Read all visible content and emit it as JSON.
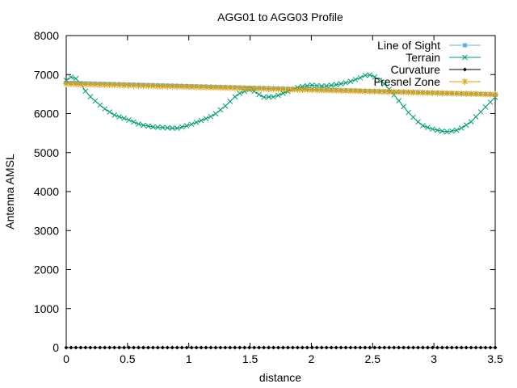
{
  "chart_data": {
    "type": "line",
    "title": "AGG01 to AGG03 Profile",
    "xlabel": "distance",
    "ylabel": "Antenna AMSL",
    "xlim": [
      0,
      3.5
    ],
    "ylim": [
      0,
      8000
    ],
    "xticks": [
      0,
      0.5,
      1,
      1.5,
      2,
      2.5,
      3,
      3.5
    ],
    "xtick_labels": [
      "0",
      "0.5",
      "1",
      "1.5",
      "2",
      "2.5",
      "3",
      "3.5"
    ],
    "yticks": [
      0,
      1000,
      2000,
      3000,
      4000,
      5000,
      6000,
      7000,
      8000
    ],
    "ytick_labels": [
      "0",
      "1000",
      "2000",
      "3000",
      "4000",
      "5000",
      "6000",
      "7000",
      "8000"
    ],
    "grid": false,
    "legend_position": "top-right",
    "series": [
      {
        "name": "Line of Sight",
        "color": "#56b4e9",
        "marker": "square",
        "x": [
          0,
          3.5
        ],
        "y": [
          6790,
          6490
        ],
        "samples": 90
      },
      {
        "name": "Terrain",
        "color": "#009e73",
        "marker": "x",
        "x": [
          0,
          0.05,
          0.1,
          0.15,
          0.2,
          0.3,
          0.4,
          0.5,
          0.6,
          0.7,
          0.8,
          0.9,
          1.0,
          1.1,
          1.2,
          1.3,
          1.4,
          1.5,
          1.55,
          1.6,
          1.7,
          1.8,
          1.9,
          2.0,
          2.1,
          2.2,
          2.3,
          2.4,
          2.45,
          2.5,
          2.6,
          2.7,
          2.8,
          2.9,
          3.0,
          3.1,
          3.2,
          3.3,
          3.4,
          3.5
        ],
        "y": [
          6850,
          6960,
          6850,
          6600,
          6420,
          6150,
          5950,
          5850,
          5720,
          5660,
          5640,
          5620,
          5700,
          5820,
          5950,
          6200,
          6500,
          6620,
          6550,
          6420,
          6430,
          6560,
          6680,
          6730,
          6700,
          6740,
          6800,
          6920,
          7000,
          6980,
          6750,
          6380,
          6000,
          5700,
          5590,
          5530,
          5580,
          5780,
          6100,
          6420
        ],
        "samples": 90
      },
      {
        "name": "Curvature",
        "color": "#000000",
        "marker": "diamond",
        "x": [
          0,
          3.5
        ],
        "y": [
          0,
          0
        ],
        "samples": 90
      },
      {
        "name": "Fresnel Zone",
        "color": "#e69f00",
        "marker": "star",
        "x": [
          0,
          3.5
        ],
        "y": [
          6760,
          6490
        ],
        "samples": 90
      }
    ]
  }
}
